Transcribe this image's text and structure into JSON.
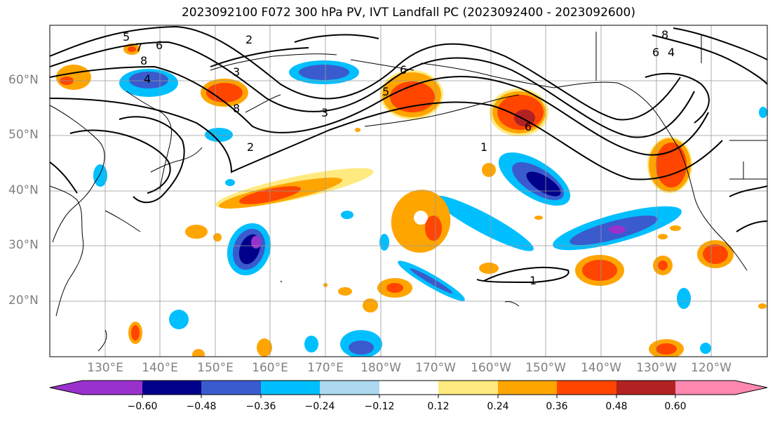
{
  "title": "2023092100 F072 300 hPa PV, IVT Landfall PC (2023092400 - 2023092600)",
  "lat_labels": [
    "60°N",
    "50°N",
    "40°N",
    "30°N",
    "20°N"
  ],
  "lon_labels": [
    "130°E",
    "140°E",
    "150°E",
    "160°E",
    "170°E",
    "180°W",
    "170°W",
    "160°W",
    "150°W",
    "140°W",
    "130°W",
    "120°W"
  ],
  "colorbar": {
    "ticks": [
      "−0.60",
      "−0.48",
      "−0.36",
      "−0.24",
      "−0.12",
      "0.12",
      "0.24",
      "0.36",
      "0.48",
      "0.60"
    ],
    "colors": [
      "#9932cc",
      "#00008b",
      "#3a5bcd",
      "#00bfff",
      "#add8f0",
      "#ffffff",
      "#ffea80",
      "#ffa500",
      "#ff4500",
      "#b22222",
      "#ff88b0"
    ]
  },
  "contour_labels": [
    "5",
    "7",
    "6",
    "8",
    "2",
    "4",
    "3",
    "8",
    "3",
    "2",
    "5",
    "6",
    "1",
    "6",
    "8",
    "6",
    "4",
    "1"
  ],
  "colors": {
    "neg_strong": "#00008b",
    "neg_mid": "#3a5bcd",
    "neg_light": "#00bfff",
    "neg_faint": "#add8f0",
    "pos_faint": "#ffea80",
    "pos_light": "#ffa500",
    "pos_mid": "#ff4500",
    "pos_strong": "#b22222"
  }
}
